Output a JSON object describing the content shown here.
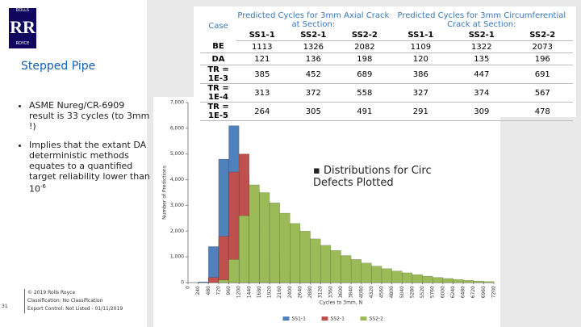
{
  "logo": {
    "top": "ROLLS",
    "mark": "RR",
    "bottom": "ROYCE"
  },
  "title": "Stepped Pipe",
  "bullets": [
    {
      "text": "ASME Nureg/CR-6909 result is 33 cycles (to 3mm !)"
    },
    {
      "text": "Implies that the extant DA deterministic methods equates to a quantified target reliability lower than 10",
      "sup": "-6"
    }
  ],
  "note": "Distributions for Circ Defects Plotted",
  "footer": {
    "page": "31",
    "lines": [
      "© 2019 Rolls Royce",
      "Classification: No Classification",
      "Export Control: Not Listed - 01/11/2019"
    ]
  },
  "table": {
    "case_header": "Case",
    "group_headers": [
      "Predicted Cycles for 3mm Axial Crack at Section:",
      "Predicted Cycles for 3mm Circumferential Crack at Section:"
    ],
    "sub_headers": [
      "SS1-1",
      "SS2-1",
      "SS2-2",
      "SS1-1",
      "SS2-1",
      "SS2-2"
    ],
    "rows": [
      [
        "BE",
        1113,
        1326,
        2082,
        1109,
        1322,
        2073
      ],
      [
        "DA",
        121,
        136,
        198,
        120,
        135,
        196
      ],
      [
        "TR = 1E-3",
        385,
        452,
        689,
        386,
        447,
        691
      ],
      [
        "TR = 1E-4",
        313,
        372,
        558,
        327,
        374,
        567
      ],
      [
        "TR = 1E-5",
        264,
        305,
        491,
        291,
        309,
        478
      ]
    ]
  },
  "chart_data": {
    "type": "histogram",
    "x_label": "Cycles to 3mm, N",
    "y_label": "Number of Predictions",
    "bins": [
      0,
      240,
      480,
      720,
      960,
      1200,
      1440,
      1680,
      1920,
      2160,
      2400,
      2640,
      2880,
      3120,
      3360,
      3600,
      3840,
      4080,
      4320,
      4560,
      4800,
      5040,
      5280,
      5520,
      5760,
      6000,
      6240,
      6480,
      6720,
      6960,
      7200
    ],
    "series": [
      {
        "name": "SS1-1",
        "color": "#4f81bd",
        "values": [
          0,
          30,
          1400,
          4800,
          6100,
          4200,
          2200,
          1000,
          450,
          180,
          70,
          25,
          10,
          0,
          0,
          0,
          0,
          0,
          0,
          0,
          0,
          0,
          0,
          0,
          0,
          0,
          0,
          0,
          0,
          0
        ]
      },
      {
        "name": "SS2-1",
        "color": "#c0504d",
        "values": [
          0,
          0,
          200,
          1800,
          4300,
          5000,
          3600,
          2000,
          1000,
          450,
          200,
          80,
          30,
          10,
          0,
          0,
          0,
          0,
          0,
          0,
          0,
          0,
          0,
          0,
          0,
          0,
          0,
          0,
          0,
          0
        ]
      },
      {
        "name": "SS2-2",
        "color": "#9bbb59",
        "values": [
          0,
          0,
          0,
          100,
          900,
          2600,
          3800,
          3500,
          3100,
          2700,
          2300,
          2000,
          1700,
          1450,
          1250,
          1050,
          900,
          760,
          640,
          540,
          450,
          380,
          310,
          250,
          200,
          160,
          120,
          90,
          60,
          40
        ]
      }
    ],
    "xlim": [
      0,
      7200
    ],
    "xticks": [
      0,
      240,
      480,
      720,
      960,
      1200,
      1440,
      1680,
      1920,
      2160,
      2400,
      2640,
      2880,
      3120,
      3360,
      3600,
      3840,
      4080,
      4320,
      4560,
      4800,
      5040,
      5280,
      5520,
      5760,
      6000,
      6240,
      6480,
      6720,
      6960,
      7200
    ],
    "ylim": [
      0,
      7000
    ],
    "yticks": [
      0,
      {
        "value": 1000,
        "label": "1,000"
      },
      {
        "value": 2000,
        "label": "2,000"
      },
      {
        "value": 3000,
        "label": "3,000"
      },
      {
        "value": 4000,
        "label": "4,000"
      },
      {
        "value": 5000,
        "label": "5,000"
      },
      {
        "value": 6000,
        "label": "6,000"
      },
      {
        "value": 7000,
        "label": "7,000"
      }
    ]
  }
}
